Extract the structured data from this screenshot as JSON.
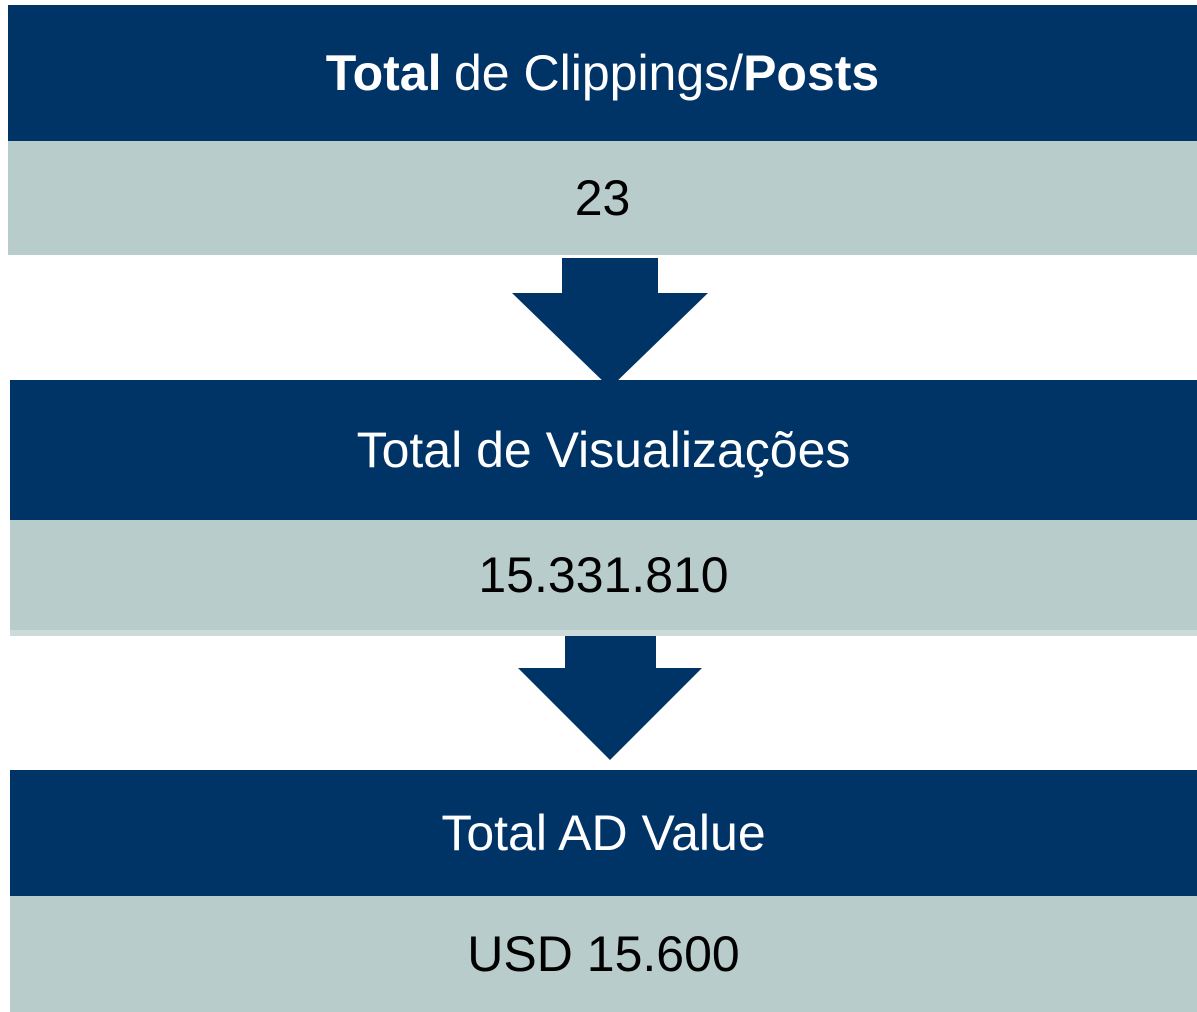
{
  "blocks": [
    {
      "title": [
        {
          "text": "Total",
          "bold": true
        },
        {
          "text": "de Clippings/",
          "bold": false
        },
        {
          "text": "Posts",
          "bold": true
        }
      ],
      "value": "23"
    },
    {
      "title": [
        {
          "text": "Total de Visualizações",
          "bold": false
        }
      ],
      "value": "15.331.810"
    },
    {
      "title": [
        {
          "text": "Total AD Value",
          "bold": false
        }
      ],
      "value": "USD 15.600"
    }
  ]
}
